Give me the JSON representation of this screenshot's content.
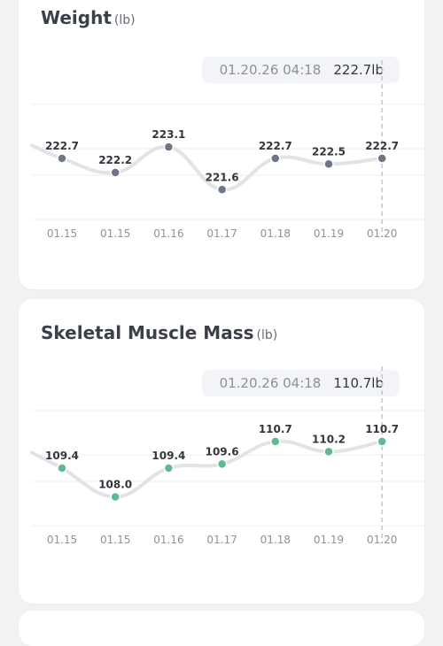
{
  "cards": [
    {
      "title": "Weight",
      "unit": "(lb)",
      "tooltip": {
        "time": "01.20.26 04:18",
        "value": "222.7lb"
      },
      "point_color": "#6e7584",
      "chart_data": {
        "type": "line",
        "categories": [
          "01.15",
          "01.15",
          "01.16",
          "01.17",
          "01.18",
          "01.19",
          "01.20"
        ],
        "values": [
          222.7,
          222.2,
          223.1,
          221.6,
          222.7,
          222.5,
          222.7
        ],
        "labels": [
          "222.7",
          "222.2",
          "223.1",
          "221.6",
          "222.7",
          "222.5",
          "222.7"
        ],
        "ylim": [
          220.55,
          224.6
        ],
        "grid": true
      }
    },
    {
      "title": "Skeletal Muscle Mass",
      "unit": "(lb)",
      "tooltip": {
        "time": "01.20.26 04:18",
        "value": "110.7lb"
      },
      "point_color": "#5dbb8f",
      "chart_data": {
        "type": "line",
        "categories": [
          "01.15",
          "01.15",
          "01.16",
          "01.17",
          "01.18",
          "01.19",
          "01.20"
        ],
        "values": [
          109.4,
          108.0,
          109.4,
          109.6,
          110.7,
          110.2,
          110.7
        ],
        "labels": [
          "109.4",
          "108.0",
          "109.4",
          "109.6",
          "110.7",
          "110.2",
          "110.7"
        ],
        "ylim": [
          106.6,
          112.2
        ],
        "grid": true
      }
    }
  ]
}
